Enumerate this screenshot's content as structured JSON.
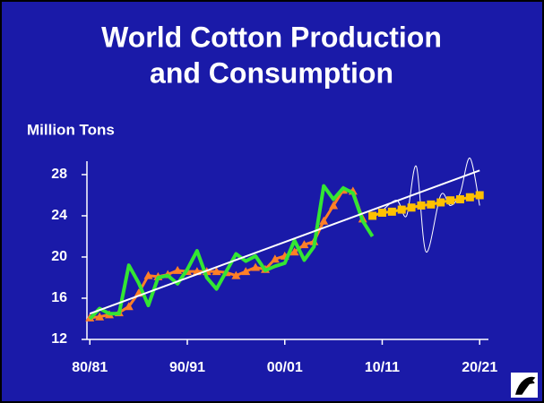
{
  "chart_data": {
    "type": "line",
    "title": "World Cotton Production and Consumption",
    "title_lines": [
      "World Cotton Production",
      "and Consumption"
    ],
    "ylabel": "Million Tons",
    "xlim": [
      1979.7,
      2020.9
    ],
    "xticks": [
      {
        "value": 1980,
        "label": "80/81"
      },
      {
        "value": 1990,
        "label": "90/91"
      },
      {
        "value": 2000,
        "label": "00/01"
      },
      {
        "value": 2010,
        "label": "10/11"
      },
      {
        "value": 2020,
        "label": "20/21"
      }
    ],
    "ylim": [
      12,
      29.3
    ],
    "yticks": [
      12,
      16,
      20,
      24,
      28
    ],
    "series": [
      {
        "color": "#ffffff",
        "marker": "none",
        "width": 1,
        "smooth": true,
        "x": [
          2010,
          2011.5,
          2012.5,
          2013.5,
          2014.5,
          2016,
          2017,
          2018,
          2019,
          2020
        ],
        "values": [
          24.5,
          25.5,
          24,
          28.8,
          20.5,
          26,
          25,
          26.2,
          29.6,
          25
        ]
      },
      {
        "color": "#ff7f27",
        "marker": "triangle",
        "width": 3,
        "x": [
          1980,
          1981,
          1982,
          1983,
          1984,
          1985,
          1986,
          1987,
          1988,
          1989,
          1990,
          1991,
          1992,
          1993,
          1994,
          1995,
          1996,
          1997,
          1998,
          1999,
          2000,
          2001,
          2002,
          2003,
          2004,
          2005,
          2006,
          2007,
          2008
        ],
        "values": [
          14.1,
          14.2,
          14.4,
          14.6,
          15.2,
          16.5,
          18.2,
          18.1,
          18.3,
          18.7,
          18.6,
          18.6,
          18.6,
          18.6,
          18.5,
          18.2,
          18.6,
          19,
          18.8,
          19.8,
          20.1,
          20.5,
          21.2,
          21.5,
          23.5,
          25,
          26.5,
          26.4,
          23.7
        ]
      },
      {
        "color": "#33e633",
        "marker": "none",
        "width": 4,
        "x": [
          1980,
          1981,
          1982,
          1983,
          1984,
          1985,
          1986,
          1987,
          1988,
          1989,
          1990,
          1991,
          1992,
          1993,
          1994,
          1995,
          1996,
          1997,
          1998,
          1999,
          2000,
          2001,
          2002,
          2003,
          2004,
          2005,
          2006,
          2007,
          2008,
          2009
        ],
        "values": [
          14,
          15,
          14.5,
          14.5,
          19.2,
          17.5,
          15.3,
          18,
          18.2,
          17.4,
          18.8,
          20.6,
          18,
          16.9,
          18.6,
          20.3,
          19.6,
          20.1,
          18.7,
          19.1,
          19.4,
          21.6,
          19.7,
          21,
          26.9,
          25.6,
          26.7,
          26.2,
          23.5,
          22
        ]
      },
      {
        "color": "#ffc000",
        "marker": "square",
        "width": 3,
        "x": [
          2009,
          2010,
          2011,
          2012,
          2013,
          2014,
          2015,
          2016,
          2017,
          2018,
          2019,
          2020
        ],
        "values": [
          24,
          24.3,
          24.4,
          24.6,
          24.8,
          25,
          25.1,
          25.3,
          25.5,
          25.6,
          25.8,
          26
        ]
      },
      {
        "color": "#ffffff",
        "marker": "none",
        "width": 2,
        "x": [
          1980,
          2020
        ],
        "values": [
          14.5,
          28.4
        ]
      }
    ]
  }
}
